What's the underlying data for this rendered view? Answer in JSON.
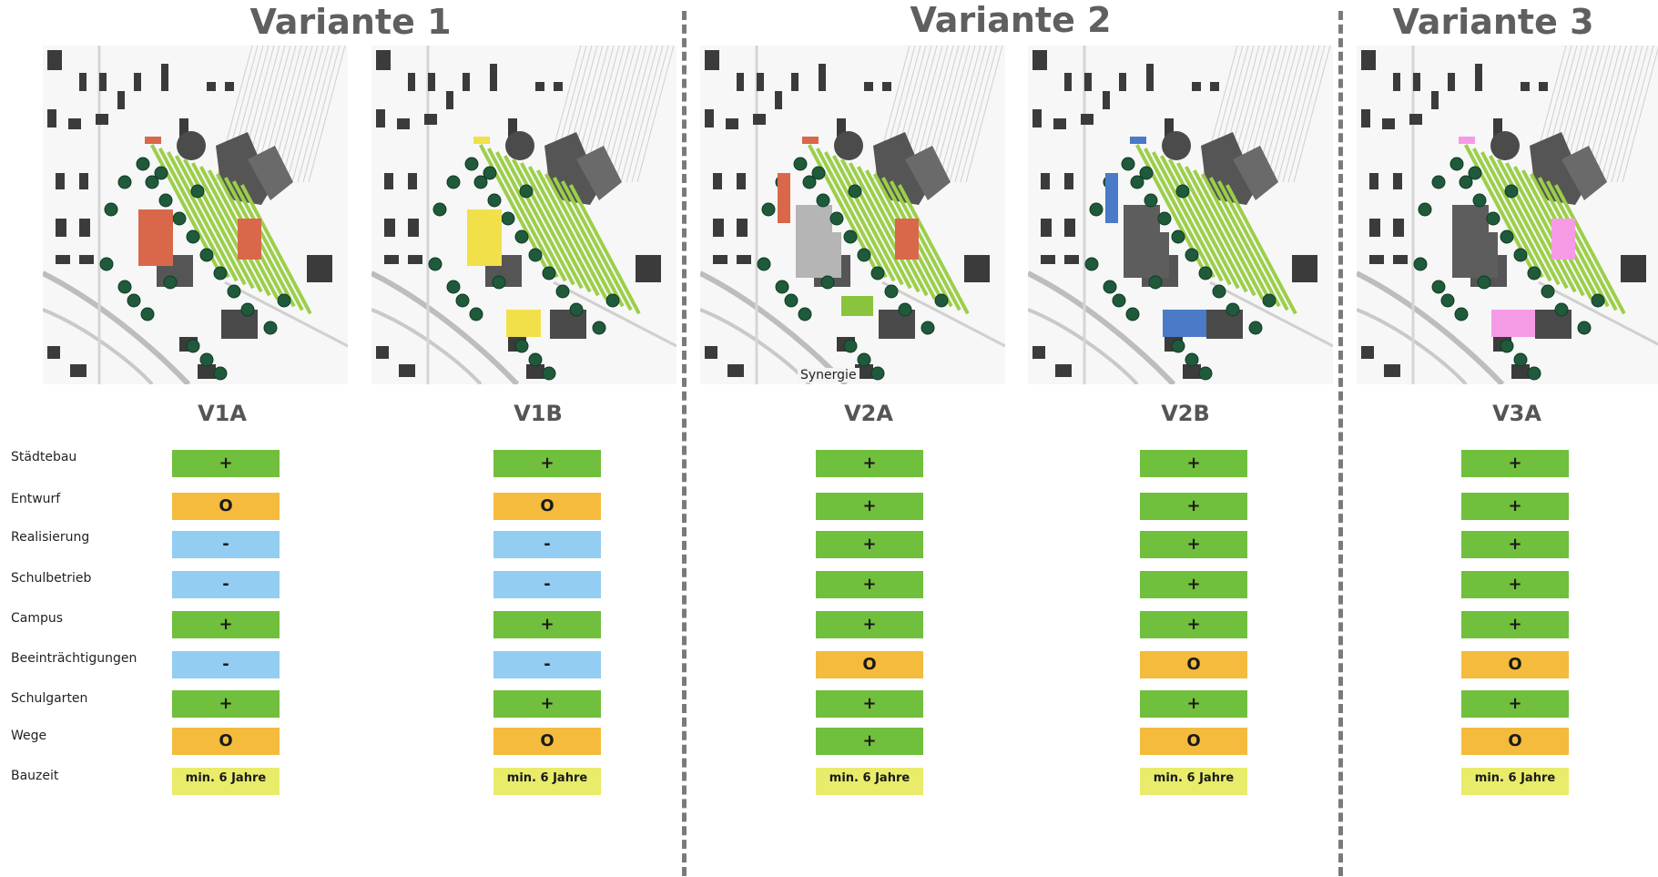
{
  "titles": {
    "v1": "Variante 1",
    "v2": "Variante 2",
    "v3": "Variante 3"
  },
  "labels": {
    "v1a": "V1A",
    "v1b": "V1B",
    "v2a": "V2A",
    "v2b": "V2B",
    "v3a": "V3A"
  },
  "map_annotation": "Synergie",
  "highlight_colors": {
    "v1a": "#d9684b",
    "v1b": "#f2e04a",
    "v2a": "#d9684b",
    "v2a_extra": "#8ac43f",
    "v2b": "#4a7ac8",
    "v3a": "#f59be6"
  },
  "criteria": [
    "Städtebau",
    "Entwurf",
    "Realisierung",
    "Schulbetrieb",
    "Campus",
    "Beeinträchtigungen",
    "Schulgarten",
    "Wege",
    "Bauzeit"
  ],
  "ratings": {
    "v1a": [
      "+",
      "O",
      "-",
      "-",
      "+",
      "-",
      "+",
      "O",
      "min. 6 Jahre"
    ],
    "v1b": [
      "+",
      "O",
      "-",
      "-",
      "+",
      "-",
      "+",
      "O",
      "min. 6 Jahre"
    ],
    "v2a": [
      "+",
      "+",
      "+",
      "+",
      "+",
      "O",
      "+",
      "+",
      "min. 6 Jahre"
    ],
    "v2b": [
      "+",
      "+",
      "+",
      "+",
      "+",
      "O",
      "+",
      "O",
      "min. 6 Jahre"
    ],
    "v3a": [
      "+",
      "+",
      "+",
      "+",
      "+",
      "O",
      "+",
      "O",
      "min. 6 Jahre"
    ]
  }
}
